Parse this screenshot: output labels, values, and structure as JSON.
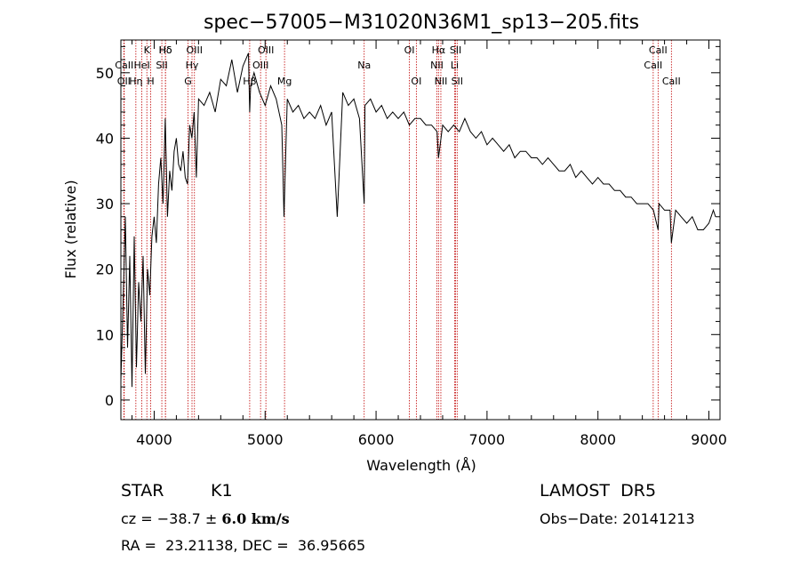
{
  "chart_data": {
    "type": "line",
    "title": "spec−57005−M31020N36M1_sp13−205.fits",
    "xlabel": "Wavelength (Å)",
    "ylabel": "Flux (relative)",
    "xlim": [
      3700,
      9100
    ],
    "ylim": [
      -3,
      55
    ],
    "xticks": [
      4000,
      5000,
      6000,
      7000,
      8000,
      9000
    ],
    "yticks": [
      0,
      10,
      20,
      30,
      40,
      50
    ],
    "grid": false,
    "line_color": "#000000",
    "marker_color": "#c00000",
    "spectrum": {
      "x": [
        3700,
        3720,
        3740,
        3760,
        3780,
        3800,
        3820,
        3840,
        3860,
        3880,
        3900,
        3920,
        3940,
        3960,
        3980,
        4000,
        4020,
        4040,
        4060,
        4080,
        4100,
        4120,
        4140,
        4160,
        4180,
        4200,
        4220,
        4240,
        4260,
        4280,
        4300,
        4320,
        4340,
        4360,
        4380,
        4400,
        4450,
        4500,
        4550,
        4600,
        4650,
        4700,
        4750,
        4800,
        4850,
        4861,
        4870,
        4900,
        4950,
        5000,
        5050,
        5100,
        5150,
        5170,
        5183,
        5200,
        5250,
        5300,
        5350,
        5400,
        5450,
        5500,
        5550,
        5600,
        5650,
        5700,
        5750,
        5800,
        5850,
        5893,
        5900,
        5950,
        6000,
        6050,
        6100,
        6150,
        6200,
        6250,
        6300,
        6350,
        6400,
        6450,
        6500,
        6550,
        6563,
        6600,
        6650,
        6700,
        6750,
        6800,
        6850,
        6900,
        6950,
        7000,
        7050,
        7100,
        7150,
        7200,
        7250,
        7300,
        7350,
        7400,
        7450,
        7500,
        7550,
        7600,
        7650,
        7700,
        7750,
        7800,
        7850,
        7900,
        7950,
        8000,
        8050,
        8100,
        8150,
        8200,
        8250,
        8300,
        8350,
        8400,
        8450,
        8500,
        8542,
        8550,
        8600,
        8650,
        8662,
        8700,
        8750,
        8800,
        8850,
        8900,
        8950,
        9000,
        9020,
        9040,
        9060
      ],
      "y": [
        3,
        15,
        28,
        8,
        22,
        2,
        25,
        5,
        18,
        12,
        22,
        4,
        20,
        16,
        25,
        28,
        24,
        33,
        37,
        30,
        43,
        28,
        35,
        32,
        38,
        40,
        36,
        35,
        38,
        34,
        33,
        42,
        40,
        44,
        34,
        46,
        45,
        47,
        44,
        49,
        48,
        52,
        47,
        51,
        53,
        44,
        48,
        50,
        47,
        45,
        48,
        46,
        42,
        28,
        36,
        46,
        44,
        45,
        43,
        44,
        43,
        45,
        42,
        44,
        28,
        47,
        45,
        46,
        43,
        30,
        45,
        46,
        44,
        45,
        43,
        44,
        43,
        44,
        42,
        43,
        43,
        42,
        42,
        41,
        37,
        42,
        41,
        42,
        41,
        43,
        41,
        40,
        41,
        39,
        40,
        39,
        38,
        39,
        37,
        38,
        38,
        37,
        37,
        36,
        37,
        36,
        35,
        35,
        36,
        34,
        35,
        34,
        33,
        34,
        33,
        33,
        32,
        32,
        31,
        31,
        30,
        30,
        30,
        29,
        26,
        30,
        29,
        29,
        24,
        29,
        28,
        27,
        28,
        26,
        26,
        27,
        28,
        29,
        28
      ]
    },
    "lines": [
      {
        "name": "Hδ",
        "x": 4102
      },
      {
        "name": "K",
        "x": 3934
      },
      {
        "name": "Hδ",
        "x": 4102
      },
      {
        "name": "CaII",
        "x": 3730
      },
      {
        "name": "HeI",
        "x": 3889
      },
      {
        "name": "SII",
        "x": 4069
      },
      {
        "name": "OII",
        "x": 3727
      },
      {
        "name": "Hη",
        "x": 3835
      },
      {
        "name": "H",
        "x": 3969
      },
      {
        "name": "OIII",
        "x": 4363
      },
      {
        "name": "Hγ",
        "x": 4341
      },
      {
        "name": "G",
        "x": 4305
      },
      {
        "name": "OIII",
        "x": 5007
      },
      {
        "name": "OIII",
        "x": 4959
      },
      {
        "name": "Hβ",
        "x": 4861
      },
      {
        "name": "Mg",
        "x": 5175
      },
      {
        "name": "Na",
        "x": 5893
      },
      {
        "name": "OI",
        "x": 6300
      },
      {
        "name": "OI",
        "x": 6363
      },
      {
        "name": "Hα",
        "x": 6563
      },
      {
        "name": "SII",
        "x": 6717
      },
      {
        "name": "NII",
        "x": 6548
      },
      {
        "name": "Li",
        "x": 6708
      },
      {
        "name": "NII",
        "x": 6584
      },
      {
        "name": "SII",
        "x": 6731
      },
      {
        "name": "CaII",
        "x": 8542
      },
      {
        "name": "CaII",
        "x": 8498
      },
      {
        "name": "CaII",
        "x": 8662
      }
    ]
  },
  "info": {
    "class": "STAR",
    "subclass": "K1",
    "survey": "LAMOST  DR5",
    "cz_prefix": "cz = −38.7 ± ",
    "cz_err": "6.0 km/s",
    "obs_date": "Obs−Date: 20141213",
    "radec": "RA =  23.21138, DEC =  36.95665"
  }
}
